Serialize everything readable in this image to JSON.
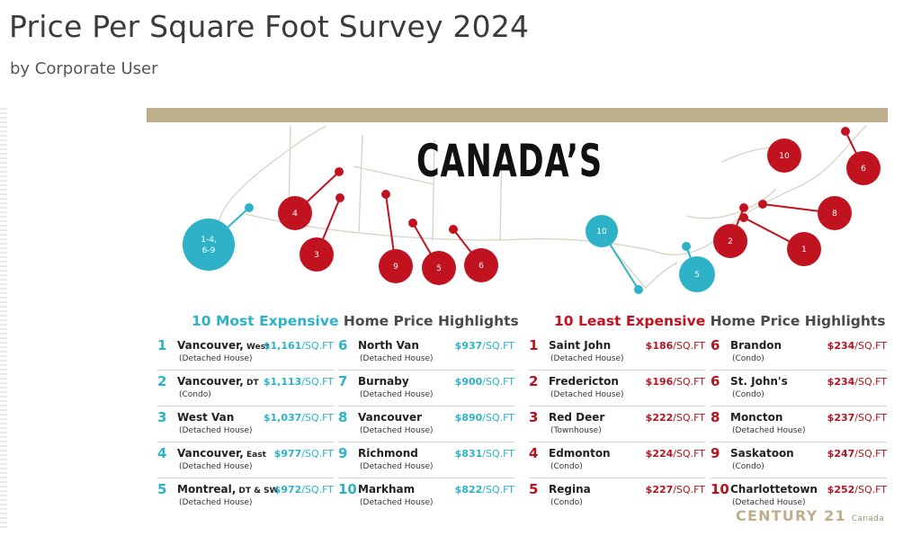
{
  "page": {
    "title": "Price Per Square Foot Survey 2024",
    "byline": "by Corporate User"
  },
  "infographic": {
    "headline": "CANADA’S",
    "brand": "CENTURY 21",
    "brand_country": "Canada",
    "colors": {
      "teal": "#2db2c8",
      "red": "#c1121f",
      "gold": "#bfae8c"
    },
    "map_markers": {
      "teal": [
        {
          "label": "1-4, 6-9"
        },
        {
          "label": "10"
        },
        {
          "label": "5"
        }
      ],
      "red_west": [
        {
          "label": "4"
        },
        {
          "label": "3"
        },
        {
          "label": "9"
        },
        {
          "label": "5"
        },
        {
          "label": "6"
        }
      ],
      "red_east": [
        {
          "label": "10"
        },
        {
          "label": "6"
        },
        {
          "label": "8"
        },
        {
          "label": "2"
        },
        {
          "label": "1"
        }
      ]
    },
    "most_expensive": {
      "title_highlight": "10 Most Expensive",
      "title_rest": " Home Price Highlights",
      "unit": "/SQ.FT",
      "items": [
        {
          "rank": "1",
          "city": "Vancouver,",
          "sub": " West",
          "type": "(Detached House)",
          "price": "$1,161"
        },
        {
          "rank": "2",
          "city": "Vancouver,",
          "sub": " DT",
          "type": "(Condo)",
          "price": "$1,113"
        },
        {
          "rank": "3",
          "city": "West Van",
          "sub": "",
          "type": "(Detached House)",
          "price": "$1,037"
        },
        {
          "rank": "4",
          "city": "Vancouver,",
          "sub": " East",
          "type": "(Detached House)",
          "price": "$977"
        },
        {
          "rank": "5",
          "city": "Montreal,",
          "sub": " DT & SW",
          "type": "(Detached House)",
          "price": "$972"
        },
        {
          "rank": "6",
          "city": "North Van",
          "sub": "",
          "type": "(Detached House)",
          "price": "$937"
        },
        {
          "rank": "7",
          "city": "Burnaby",
          "sub": "",
          "type": "(Detached House)",
          "price": "$900"
        },
        {
          "rank": "8",
          "city": "Vancouver",
          "sub": "",
          "type": "(Detached House)",
          "price": "$890"
        },
        {
          "rank": "9",
          "city": "Richmond",
          "sub": "",
          "type": "(Detached House)",
          "price": "$831"
        },
        {
          "rank": "10",
          "city": "Markham",
          "sub": "",
          "type": "(Detached House)",
          "price": "$822"
        }
      ]
    },
    "least_expensive": {
      "title_highlight": "10 Least Expensive",
      "title_rest": " Home Price Highlights",
      "unit": "/SQ.FT",
      "items": [
        {
          "rank": "1",
          "city": "Saint John",
          "sub": "",
          "type": "(Detached House)",
          "price": "$186"
        },
        {
          "rank": "2",
          "city": "Fredericton",
          "sub": "",
          "type": "(Detached House)",
          "price": "$196"
        },
        {
          "rank": "3",
          "city": "Red Deer",
          "sub": "",
          "type": "(Townhouse)",
          "price": "$222"
        },
        {
          "rank": "4",
          "city": "Edmonton",
          "sub": "",
          "type": "(Condo)",
          "price": "$224"
        },
        {
          "rank": "5",
          "city": "Regina",
          "sub": "",
          "type": "(Condo)",
          "price": "$227"
        },
        {
          "rank": "6",
          "city": "Brandon",
          "sub": "",
          "type": "(Condo)",
          "price": "$234"
        },
        {
          "rank": "6",
          "city": "St. John's",
          "sub": "",
          "type": "(Condo)",
          "price": "$234"
        },
        {
          "rank": "8",
          "city": "Moncton",
          "sub": "",
          "type": "(Detached House)",
          "price": "$237"
        },
        {
          "rank": "9",
          "city": "Saskatoon",
          "sub": "",
          "type": "(Condo)",
          "price": "$247"
        },
        {
          "rank": "10",
          "city": "Charlottetown",
          "sub": "",
          "type": "(Detached House)",
          "price": "$252"
        }
      ]
    }
  }
}
